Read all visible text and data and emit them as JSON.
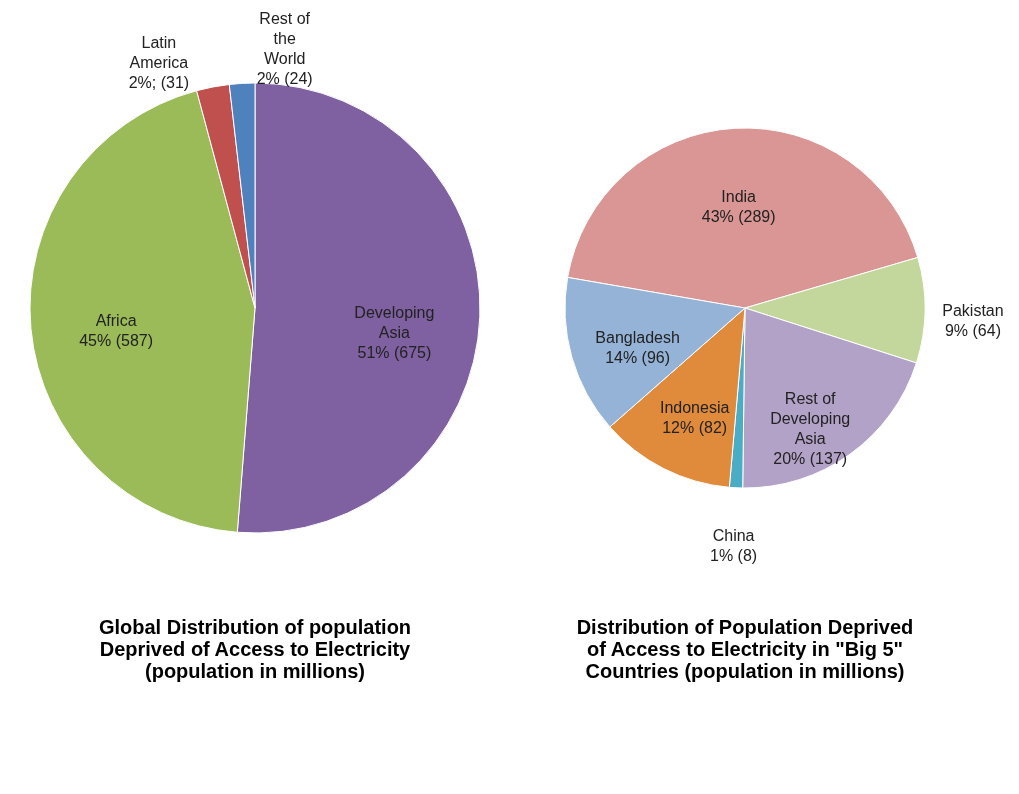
{
  "chart_data": [
    {
      "type": "pie",
      "title": "Global Distribution of population Deprived of Access to Electricity (population in millions)",
      "categories": [
        "Developing Asia",
        "Africa",
        "Latin America",
        "Rest of the World"
      ],
      "values": [
        675,
        587,
        31,
        24
      ],
      "colors": [
        "#7f60a0",
        "#9bbb59",
        "#c0504d",
        "#4f81bd"
      ],
      "value_labels": [
        "51% (675)",
        "45% (587)",
        "2%; (31)",
        "2% (24)"
      ]
    },
    {
      "type": "pie",
      "title": "Distribution of Population Deprived of Access to Electricity in \"Big 5\" Countries (population in millions)",
      "categories": [
        "India",
        "Pakistan",
        "Rest of Developing Asia",
        "China",
        "Indonesia",
        "Bangladesh"
      ],
      "values": [
        289,
        64,
        137,
        8,
        82,
        96
      ],
      "colors": [
        "#d99694",
        "#c3d69b",
        "#b3a2c7",
        "#4bacc6",
        "#e08a3c",
        "#95b3d7"
      ],
      "value_labels": [
        "43% (289)",
        "9% (64)",
        "20% (137)",
        "1% (8)",
        "12% (82)",
        "14% (96)"
      ]
    }
  ]
}
